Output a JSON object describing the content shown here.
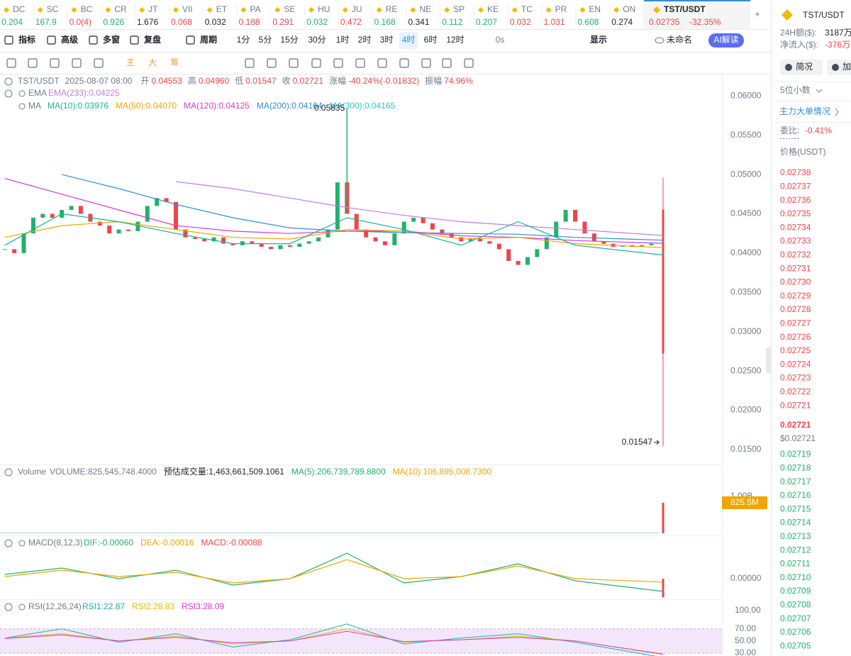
{
  "tickers": [
    {
      "name": "DC",
      "price": "0.204",
      "color": "#20b26c"
    },
    {
      "name": "SC",
      "price": "167.9",
      "color": "#20b26c"
    },
    {
      "name": "BC",
      "price": "0.0(4)",
      "color": "#ef454a"
    },
    {
      "name": "CR",
      "price": "0.926",
      "color": "#20b26c"
    },
    {
      "name": "JT",
      "price": "1.676",
      "color": "#1e2329"
    },
    {
      "name": "VII",
      "price": "0.068",
      "color": "#ef454a"
    },
    {
      "name": "ET",
      "price": "0.032",
      "color": "#1e2329"
    },
    {
      "name": "PA",
      "price": "0.188",
      "color": "#ef454a"
    },
    {
      "name": "SE",
      "price": "0.291",
      "color": "#ef454a"
    },
    {
      "name": "HU",
      "price": "0.032",
      "color": "#20b26c"
    },
    {
      "name": "JU",
      "price": "0.472",
      "color": "#ef454a"
    },
    {
      "name": "RE",
      "price": "0.168",
      "color": "#20b26c"
    },
    {
      "name": "NE",
      "price": "0.341",
      "color": "#1e2329"
    },
    {
      "name": "SP",
      "price": "0.112",
      "color": "#20b26c"
    },
    {
      "name": "KE",
      "price": "0.207",
      "color": "#20b26c"
    },
    {
      "name": "TC",
      "price": "0.032",
      "color": "#ef454a"
    },
    {
      "name": "PR",
      "price": "1.031",
      "color": "#ef454a"
    },
    {
      "name": "EN",
      "price": "0.608",
      "color": "#20b26c"
    },
    {
      "name": "ON",
      "price": "0.274",
      "color": "#1e2329"
    }
  ],
  "active_ticker": {
    "name": "TST/USDT",
    "price": "0.02735",
    "change": "-32.35%"
  },
  "toolbar": {
    "items": [
      "指标",
      "高级",
      "多窗",
      "复盘",
      "周期"
    ],
    "intervals": [
      "1分",
      "5分",
      "15分",
      "30分",
      "1时",
      "2时",
      "3时",
      "4时",
      "6时",
      "12时"
    ],
    "active_interval": 7,
    "timer": "0s",
    "display": "显示",
    "layout_name": "未命名",
    "ai": "AI解读"
  },
  "drawing_tools": [
    "主",
    "大",
    "筹"
  ],
  "header": {
    "symbol": "TST/USDT",
    "datetime": "2025-08-07 08:00",
    "open_label": "开",
    "open": "0.04553",
    "high_label": "高",
    "high": "0.04960",
    "low_label": "低",
    "low": "0.01547",
    "close_label": "收",
    "close": "0.02721",
    "change_label": "涨幅",
    "change": "-40.24%(-0.01832)",
    "amplitude_label": "振幅",
    "amplitude": "74.96%"
  },
  "ema_legend": {
    "label": "EMA",
    "items": [
      {
        "text": "EMA(233):0.04225",
        "color": "#c57be0"
      }
    ]
  },
  "ma_legend": {
    "label": "MA",
    "items": [
      {
        "text": "MA(10):0.03976",
        "color": "#17b39c"
      },
      {
        "text": "MA(50):0.04070",
        "color": "#f0a500"
      },
      {
        "text": "MA(120):0.04125",
        "color": "#d63ad6"
      },
      {
        "text": "MA(200):0.04164",
        "color": "#2d8fd8"
      },
      {
        "text": "MA(300):0.04165",
        "color": "#26c6da"
      }
    ]
  },
  "chart": {
    "ylim": [
      0.0131,
      0.0621
    ],
    "yticks": [
      {
        "value": 0.06,
        "label": "0.06000"
      },
      {
        "value": 0.055,
        "label": "0.05500"
      },
      {
        "value": 0.05,
        "label": "0.05000"
      },
      {
        "value": 0.045,
        "label": "0.04500"
      },
      {
        "value": 0.04,
        "label": "0.04000"
      },
      {
        "value": 0.035,
        "label": "0.03500"
      },
      {
        "value": 0.03,
        "label": "0.03000"
      },
      {
        "value": 0.025,
        "label": "0.02500"
      },
      {
        "value": 0.02,
        "label": "0.02000"
      },
      {
        "value": 0.015,
        "label": "0.01500"
      }
    ],
    "up_color": "#20b26c",
    "down_color": "#ef454a",
    "closes": [
      0.0405,
      0.04,
      0.0425,
      0.0445,
      0.045,
      0.0445,
      0.0455,
      0.046,
      0.045,
      0.044,
      0.0435,
      0.0425,
      0.043,
      0.0428,
      0.044,
      0.046,
      0.047,
      0.0465,
      0.043,
      0.042,
      0.0418,
      0.0415,
      0.042,
      0.0412,
      0.041,
      0.0415,
      0.0412,
      0.0408,
      0.0405,
      0.041,
      0.0408,
      0.0412,
      0.0415,
      0.042,
      0.043,
      0.049,
      0.045,
      0.043,
      0.042,
      0.0415,
      0.041,
      0.0425,
      0.044,
      0.0445,
      0.0438,
      0.043,
      0.0425,
      0.042,
      0.0415,
      0.0418,
      0.0415,
      0.0412,
      0.0405,
      0.039,
      0.0385,
      0.0395,
      0.0405,
      0.042,
      0.044,
      0.0455,
      0.044,
      0.0425,
      0.0415,
      0.0412,
      0.0408,
      0.041,
      0.0408,
      0.041,
      0.0412
    ],
    "peak_high": 0.05835,
    "last_candle": {
      "open": 0.04553,
      "high": 0.0496,
      "low": 0.01547,
      "close": 0.02721
    },
    "lines": [
      {
        "color": "#c57be0",
        "values": [
          null,
          null,
          null,
          0.0491,
          0.0482,
          0.047,
          0.0458,
          0.0448,
          0.044,
          0.0435,
          0.043,
          0.04225
        ]
      },
      {
        "color": "#2d8fd8",
        "values": [
          null,
          0.05,
          0.0482,
          0.0462,
          0.0445,
          0.0432,
          0.0428,
          0.0426,
          0.0425,
          0.0424,
          0.042,
          0.04164
        ]
      },
      {
        "color": "#d63ad6",
        "values": [
          0.0495,
          0.0475,
          0.0455,
          0.0435,
          0.0428,
          0.0425,
          0.0428,
          0.0428,
          0.0422,
          0.042,
          0.0416,
          0.04125
        ]
      },
      {
        "color": "#f0a500",
        "values": [
          0.042,
          0.0435,
          0.044,
          0.043,
          0.042,
          0.0418,
          0.043,
          0.0428,
          0.0418,
          0.042,
          0.0412,
          0.0407
        ]
      },
      {
        "color": "#17b39c",
        "values": [
          0.041,
          0.045,
          0.044,
          0.0425,
          0.0412,
          0.0412,
          0.0445,
          0.043,
          0.041,
          0.044,
          0.041,
          0.03976
        ]
      }
    ]
  },
  "volume": {
    "label": "Volume",
    "items": [
      {
        "text": "VOLUME:825,545,748.4000",
        "color": "#707a8a"
      },
      {
        "text": "预估成交量:1,463,661,509.1061",
        "color": "#1e2329"
      },
      {
        "text": "MA(5):206,739,789.8800",
        "color": "#20b26c"
      },
      {
        "text": "MA(10):106,895,008.7300",
        "color": "#f0a500"
      }
    ],
    "ylim": [
      0,
      1380000000
    ],
    "yticks": [
      {
        "value": 1000000000,
        "label": "1.00B"
      }
    ],
    "last_value": 825545748.4,
    "last_label": "825.5M"
  },
  "macd": {
    "label": "MACD(8,12,3)",
    "items": [
      {
        "text": "DIF:-0.00060",
        "color": "#20b26c"
      },
      {
        "text": "DEA:-0.00016",
        "color": "#f0a500"
      },
      {
        "text": "MACD:-0.00088",
        "color": "#ef454a"
      }
    ],
    "ylim": [
      -0.00107,
      0.00137
    ],
    "yticks": [
      {
        "value": 0,
        "label": "0.00000"
      }
    ],
    "dif": [
      0.0002,
      0.0005,
      0.0,
      0.0004,
      -0.0003,
      0.0,
      0.0012,
      -0.0002,
      0.0001,
      0.0007,
      -0.0001,
      -0.0006
    ],
    "dea": [
      0.0001,
      0.0004,
      0.0001,
      0.0003,
      -0.0002,
      0.0,
      0.0009,
      0.0,
      0.0001,
      0.0006,
      0.0,
      -0.00016
    ],
    "last_hist": -0.00088
  },
  "rsi": {
    "label": "RSI(12,26,24)",
    "items": [
      {
        "text": "RSI1:22.87",
        "color": "#17b39c"
      },
      {
        "text": "RSI2:28.83",
        "color": "#e6b800"
      },
      {
        "text": "RSI3:28.09",
        "color": "#d63ad6"
      }
    ],
    "ylim": [
      25.3,
      100
    ],
    "yticks": [
      {
        "value": 100,
        "label": "100.00"
      },
      {
        "value": 70,
        "label": "70.00"
      },
      {
        "value": 50,
        "label": "50.00"
      },
      {
        "value": 30,
        "label": "30.00"
      }
    ],
    "band": [
      30,
      70
    ],
    "series": [
      [
        55,
        70,
        48,
        62,
        40,
        52,
        78,
        45,
        55,
        62,
        48,
        22.87
      ],
      [
        55,
        62,
        50,
        58,
        45,
        50,
        70,
        48,
        52,
        58,
        50,
        28.83
      ],
      [
        54,
        60,
        50,
        56,
        47,
        50,
        66,
        49,
        52,
        56,
        50,
        28.09
      ]
    ]
  },
  "side_panel": {
    "symbol": "TST/USDT",
    "stats": [
      {
        "label": "24H额($):",
        "value": "3187万"
      },
      {
        "label": "净流入($):",
        "value": "-376万"
      }
    ],
    "buttons": [
      "简况",
      "加"
    ],
    "precision": "5位小数",
    "big_orders": "主力大单情况",
    "ratio_label": "委比:",
    "ratio": "-0.41%",
    "price_header": "价格(USDT)",
    "asks": [
      "0.02738",
      "0.02737",
      "0.02736",
      "0.02735",
      "0.02734",
      "0.02733",
      "0.02732",
      "0.02731",
      "0.02730",
      "0.02729",
      "0.02728",
      "0.02727",
      "0.02726",
      "0.02725",
      "0.02724",
      "0.02723",
      "0.02722",
      "0.02721"
    ],
    "last_price": "0.02721",
    "last_price_usd": "$0.02721",
    "bids": [
      "0.02719",
      "0.02718",
      "0.02717",
      "0.02716",
      "0.02715",
      "0.02714",
      "0.02713",
      "0.02712",
      "0.02711",
      "0.02710",
      "0.02709",
      "0.02708",
      "0.02707",
      "0.02706",
      "0.02705"
    ]
  }
}
